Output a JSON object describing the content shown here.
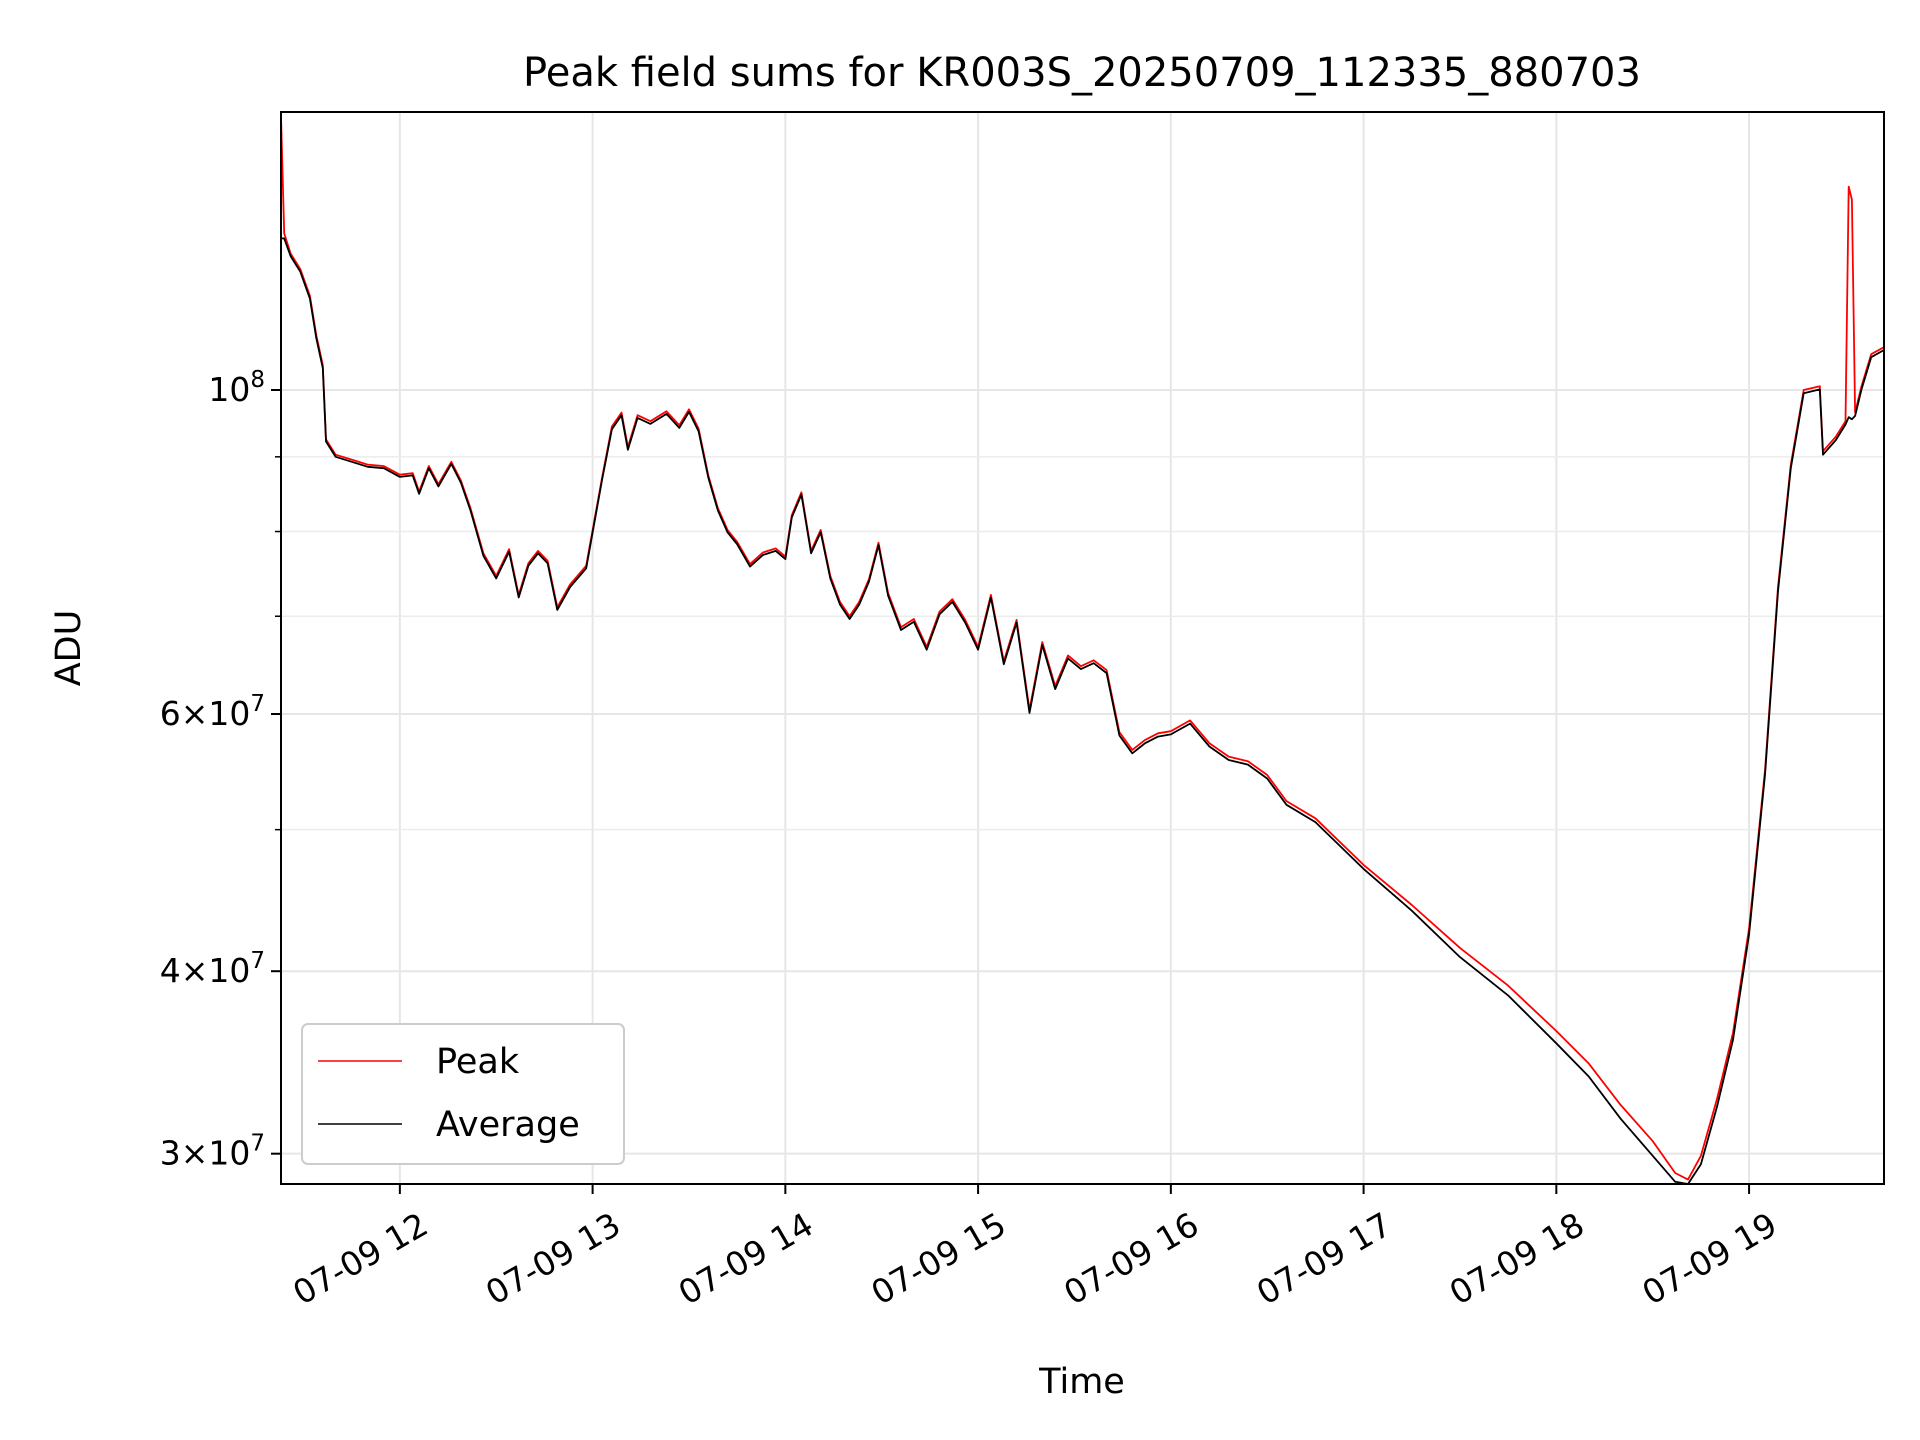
{
  "chart_data": {
    "type": "line",
    "title": "Peak field sums for KR003S_20250709_112335_880703",
    "xlabel": "Time",
    "ylabel": "ADU",
    "x_scale": "time",
    "y_scale": "log",
    "xlim": [
      "07-09 11:23",
      "07-09 19:42"
    ],
    "ylim": [
      28600000,
      155000000
    ],
    "x_ticks": [
      "07-09 12:00",
      "07-09 13:00",
      "07-09 14:00",
      "07-09 15:00",
      "07-09 16:00",
      "07-09 17:00",
      "07-09 18:00",
      "07-09 19:00"
    ],
    "x_tick_labels": [
      "07-09 12",
      "07-09 13",
      "07-09 14",
      "07-09 15",
      "07-09 16",
      "07-09 17",
      "07-09 18",
      "07-09 19"
    ],
    "y_ticks_major": [
      {
        "value": 100000000,
        "base": "10",
        "exp": "8"
      },
      {
        "value": 60000000,
        "base": "6×10",
        "exp": "7"
      },
      {
        "value": 40000000,
        "base": "4×10",
        "exp": "7"
      },
      {
        "value": 30000000,
        "base": "3×10",
        "exp": "7"
      }
    ],
    "y_ticks_minor": [
      50000000,
      70000000,
      80000000,
      90000000,
      200000000
    ],
    "grid": true,
    "legend_position": "lower-left",
    "series": [
      {
        "name": "Peak",
        "color": "#ff0000",
        "points": [
          [
            "07-09 11:23",
            154000000
          ],
          [
            "07-09 11:24",
            128000000
          ],
          [
            "07-09 11:26",
            124000000
          ],
          [
            "07-09 11:29",
            121000000
          ],
          [
            "07-09 11:32",
            116000000
          ],
          [
            "07-09 11:34",
            109000000
          ],
          [
            "07-09 11:36",
            104000000
          ],
          [
            "07-09 11:37",
            92500000
          ],
          [
            "07-09 11:40",
            90300000
          ],
          [
            "07-09 11:45",
            89600000
          ],
          [
            "07-09 11:50",
            88900000
          ],
          [
            "07-09 11:55",
            88700000
          ],
          [
            "07-09 12:00",
            87500000
          ],
          [
            "07-09 12:04",
            87700000
          ],
          [
            "07-09 12:06",
            85200000
          ],
          [
            "07-09 12:09",
            88700000
          ],
          [
            "07-09 12:12",
            86200000
          ],
          [
            "07-09 12:16",
            89300000
          ],
          [
            "07-09 12:19",
            86700000
          ],
          [
            "07-09 12:22",
            83000000
          ],
          [
            "07-09 12:26",
            77300000
          ],
          [
            "07-09 12:30",
            74600000
          ],
          [
            "07-09 12:34",
            77800000
          ],
          [
            "07-09 12:37",
            72400000
          ],
          [
            "07-09 12:40",
            76100000
          ],
          [
            "07-09 12:43",
            77600000
          ],
          [
            "07-09 12:46",
            76400000
          ],
          [
            "07-09 12:49",
            71000000
          ],
          [
            "07-09 12:53",
            73600000
          ],
          [
            "07-09 12:58",
            75800000
          ],
          [
            "07-09 13:03",
            87200000
          ],
          [
            "07-09 13:06",
            94400000
          ],
          [
            "07-09 13:09",
            96500000
          ],
          [
            "07-09 13:11",
            91400000
          ],
          [
            "07-09 13:14",
            96100000
          ],
          [
            "07-09 13:18",
            95200000
          ],
          [
            "07-09 13:23",
            96700000
          ],
          [
            "07-09 13:27",
            94600000
          ],
          [
            "07-09 13:30",
            97000000
          ],
          [
            "07-09 13:33",
            94100000
          ],
          [
            "07-09 13:36",
            87400000
          ],
          [
            "07-09 13:39",
            83000000
          ],
          [
            "07-09 13:42",
            80200000
          ],
          [
            "07-09 13:45",
            78700000
          ],
          [
            "07-09 13:49",
            76000000
          ],
          [
            "07-09 13:53",
            77400000
          ],
          [
            "07-09 13:57",
            77900000
          ],
          [
            "07-09 14:00",
            76900000
          ],
          [
            "07-09 14:02",
            82100000
          ],
          [
            "07-09 14:05",
            85100000
          ],
          [
            "07-09 14:08",
            77600000
          ],
          [
            "07-09 14:11",
            80200000
          ],
          [
            "07-09 14:14",
            74600000
          ],
          [
            "07-09 14:17",
            71600000
          ],
          [
            "07-09 14:20",
            70000000
          ],
          [
            "07-09 14:23",
            71600000
          ],
          [
            "07-09 14:26",
            74200000
          ],
          [
            "07-09 14:29",
            78600000
          ],
          [
            "07-09 14:32",
            72600000
          ],
          [
            "07-09 14:36",
            68800000
          ],
          [
            "07-09 14:40",
            69700000
          ],
          [
            "07-09 14:44",
            66700000
          ],
          [
            "07-09 14:48",
            70500000
          ],
          [
            "07-09 14:52",
            71900000
          ],
          [
            "07-09 14:56",
            69600000
          ],
          [
            "07-09 15:00",
            66700000
          ],
          [
            "07-09 15:04",
            72400000
          ],
          [
            "07-09 15:08",
            65200000
          ],
          [
            "07-09 15:12",
            69600000
          ],
          [
            "07-09 15:16",
            60400000
          ],
          [
            "07-09 15:20",
            67200000
          ],
          [
            "07-09 15:24",
            62700000
          ],
          [
            "07-09 15:28",
            65800000
          ],
          [
            "07-09 15:32",
            64700000
          ],
          [
            "07-09 15:36",
            65300000
          ],
          [
            "07-09 15:40",
            64300000
          ],
          [
            "07-09 15:44",
            58300000
          ],
          [
            "07-09 15:48",
            56700000
          ],
          [
            "07-09 15:52",
            57600000
          ],
          [
            "07-09 15:56",
            58200000
          ],
          [
            "07-09 16:00",
            58400000
          ],
          [
            "07-09 16:06",
            59400000
          ],
          [
            "07-09 16:12",
            57300000
          ],
          [
            "07-09 16:18",
            56100000
          ],
          [
            "07-09 16:24",
            55700000
          ],
          [
            "07-09 16:30",
            54500000
          ],
          [
            "07-09 16:36",
            52300000
          ],
          [
            "07-09 16:45",
            50900000
          ],
          [
            "07-09 17:00",
            47300000
          ],
          [
            "07-09 17:15",
            44400000
          ],
          [
            "07-09 17:30",
            41500000
          ],
          [
            "07-09 17:45",
            39100000
          ],
          [
            "07-09 18:00",
            36400000
          ],
          [
            "07-09 18:10",
            34600000
          ],
          [
            "07-09 18:20",
            32400000
          ],
          [
            "07-09 18:30",
            30600000
          ],
          [
            "07-09 18:37",
            29100000
          ],
          [
            "07-09 18:41",
            28800000
          ],
          [
            "07-09 18:45",
            29900000
          ],
          [
            "07-09 18:50",
            32700000
          ],
          [
            "07-09 18:55",
            36300000
          ],
          [
            "07-09 19:00",
            42800000
          ],
          [
            "07-09 19:05",
            55000000
          ],
          [
            "07-09 19:09",
            73300000
          ],
          [
            "07-09 19:13",
            88900000
          ],
          [
            "07-09 19:17",
            100000000
          ],
          [
            "07-09 19:22",
            100600000
          ],
          [
            "07-09 19:23",
            90800000
          ],
          [
            "07-09 19:27",
            92900000
          ],
          [
            "07-09 19:30",
            95200000
          ],
          [
            "07-09 19:31",
            137800000
          ],
          [
            "07-09 19:32",
            135000000
          ],
          [
            "07-09 19:33",
            96500000
          ],
          [
            "07-09 19:35",
            100600000
          ],
          [
            "07-09 19:38",
            105800000
          ],
          [
            "07-09 19:42",
            107000000
          ]
        ]
      },
      {
        "name": "Average",
        "color": "#000000",
        "points": [
          [
            "07-09 11:23",
            127000000
          ],
          [
            "07-09 11:24",
            127000000
          ],
          [
            "07-09 11:26",
            123500000
          ],
          [
            "07-09 11:29",
            120500000
          ],
          [
            "07-09 11:32",
            115500000
          ],
          [
            "07-09 11:34",
            108500000
          ],
          [
            "07-09 11:36",
            103500000
          ],
          [
            "07-09 11:37",
            92200000
          ],
          [
            "07-09 11:40",
            90000000
          ],
          [
            "07-09 11:45",
            89300000
          ],
          [
            "07-09 11:50",
            88600000
          ],
          [
            "07-09 11:55",
            88400000
          ],
          [
            "07-09 12:00",
            87200000
          ],
          [
            "07-09 12:04",
            87400000
          ],
          [
            "07-09 12:06",
            84900000
          ],
          [
            "07-09 12:09",
            88400000
          ],
          [
            "07-09 12:12",
            85900000
          ],
          [
            "07-09 12:16",
            89000000
          ],
          [
            "07-09 12:19",
            86400000
          ],
          [
            "07-09 12:22",
            82700000
          ],
          [
            "07-09 12:26",
            77000000
          ],
          [
            "07-09 12:30",
            74300000
          ],
          [
            "07-09 12:34",
            77500000
          ],
          [
            "07-09 12:37",
            72100000
          ],
          [
            "07-09 12:40",
            75800000
          ],
          [
            "07-09 12:43",
            77300000
          ],
          [
            "07-09 12:46",
            76100000
          ],
          [
            "07-09 12:49",
            70700000
          ],
          [
            "07-09 12:53",
            73300000
          ],
          [
            "07-09 12:58",
            75500000
          ],
          [
            "07-09 13:03",
            86900000
          ],
          [
            "07-09 13:06",
            94000000
          ],
          [
            "07-09 13:09",
            96100000
          ],
          [
            "07-09 13:11",
            91000000
          ],
          [
            "07-09 13:14",
            95700000
          ],
          [
            "07-09 13:18",
            94800000
          ],
          [
            "07-09 13:23",
            96300000
          ],
          [
            "07-09 13:27",
            94200000
          ],
          [
            "07-09 13:30",
            96600000
          ],
          [
            "07-09 13:33",
            93700000
          ],
          [
            "07-09 13:36",
            87100000
          ],
          [
            "07-09 13:39",
            82700000
          ],
          [
            "07-09 13:42",
            79900000
          ],
          [
            "07-09 13:45",
            78400000
          ],
          [
            "07-09 13:49",
            75700000
          ],
          [
            "07-09 13:53",
            77100000
          ],
          [
            "07-09 13:57",
            77600000
          ],
          [
            "07-09 14:00",
            76600000
          ],
          [
            "07-09 14:02",
            81800000
          ],
          [
            "07-09 14:05",
            84800000
          ],
          [
            "07-09 14:08",
            77300000
          ],
          [
            "07-09 14:11",
            79900000
          ],
          [
            "07-09 14:14",
            74300000
          ],
          [
            "07-09 14:17",
            71300000
          ],
          [
            "07-09 14:20",
            69700000
          ],
          [
            "07-09 14:23",
            71300000
          ],
          [
            "07-09 14:26",
            73900000
          ],
          [
            "07-09 14:29",
            78300000
          ],
          [
            "07-09 14:32",
            72300000
          ],
          [
            "07-09 14:36",
            68500000
          ],
          [
            "07-09 14:40",
            69400000
          ],
          [
            "07-09 14:44",
            66400000
          ],
          [
            "07-09 14:48",
            70200000
          ],
          [
            "07-09 14:52",
            71600000
          ],
          [
            "07-09 14:56",
            69300000
          ],
          [
            "07-09 15:00",
            66400000
          ],
          [
            "07-09 15:04",
            72100000
          ],
          [
            "07-09 15:08",
            64900000
          ],
          [
            "07-09 15:12",
            69300000
          ],
          [
            "07-09 15:16",
            60100000
          ],
          [
            "07-09 15:20",
            66900000
          ],
          [
            "07-09 15:24",
            62400000
          ],
          [
            "07-09 15:28",
            65500000
          ],
          [
            "07-09 15:32",
            64400000
          ],
          [
            "07-09 15:36",
            65000000
          ],
          [
            "07-09 15:40",
            64000000
          ],
          [
            "07-09 15:44",
            58000000
          ],
          [
            "07-09 15:48",
            56400000
          ],
          [
            "07-09 15:52",
            57300000
          ],
          [
            "07-09 15:56",
            57900000
          ],
          [
            "07-09 16:00",
            58100000
          ],
          [
            "07-09 16:06",
            59100000
          ],
          [
            "07-09 16:12",
            57000000
          ],
          [
            "07-09 16:18",
            55800000
          ],
          [
            "07-09 16:24",
            55400000
          ],
          [
            "07-09 16:30",
            54200000
          ],
          [
            "07-09 16:36",
            52000000
          ],
          [
            "07-09 16:45",
            50600000
          ],
          [
            "07-09 17:00",
            47000000
          ],
          [
            "07-09 17:15",
            44000000
          ],
          [
            "07-09 17:30",
            40900000
          ],
          [
            "07-09 17:45",
            38500000
          ],
          [
            "07-09 18:00",
            35700000
          ],
          [
            "07-09 18:10",
            33900000
          ],
          [
            "07-09 18:20",
            31700000
          ],
          [
            "07-09 18:30",
            29900000
          ],
          [
            "07-09 18:37",
            28700000
          ],
          [
            "07-09 18:41",
            28600000
          ],
          [
            "07-09 18:45",
            29500000
          ],
          [
            "07-09 18:50",
            32300000
          ],
          [
            "07-09 18:55",
            35900000
          ],
          [
            "07-09 19:00",
            42400000
          ],
          [
            "07-09 19:05",
            54600000
          ],
          [
            "07-09 19:09",
            72800000
          ],
          [
            "07-09 19:13",
            88400000
          ],
          [
            "07-09 19:17",
            99500000
          ],
          [
            "07-09 19:22",
            100100000
          ],
          [
            "07-09 19:23",
            90300000
          ],
          [
            "07-09 19:27",
            92400000
          ],
          [
            "07-09 19:30",
            94700000
          ],
          [
            "07-09 19:31",
            95800000
          ],
          [
            "07-09 19:32",
            95500000
          ],
          [
            "07-09 19:33",
            96000000
          ],
          [
            "07-09 19:35",
            100100000
          ],
          [
            "07-09 19:38",
            105300000
          ],
          [
            "07-09 19:42",
            106500000
          ]
        ]
      }
    ]
  }
}
